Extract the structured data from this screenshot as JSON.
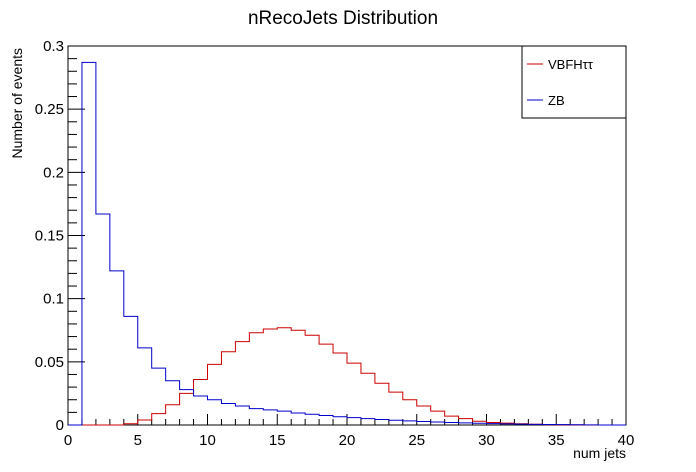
{
  "chart_data": {
    "type": "histogram",
    "title": "nRecoJets Distribution",
    "xlabel": "num jets",
    "ylabel": "Number of events",
    "xlim": [
      0,
      40
    ],
    "ylim": [
      0,
      0.3
    ],
    "x_ticks": [
      "0",
      "5",
      "10",
      "15",
      "20",
      "25",
      "30",
      "35",
      "40"
    ],
    "y_ticks": [
      "0",
      "0.05",
      "0.1",
      "0.15",
      "0.2",
      "0.25",
      "0.3"
    ],
    "bin_edges": [
      0,
      1,
      2,
      3,
      4,
      5,
      6,
      7,
      8,
      9,
      10,
      11,
      12,
      13,
      14,
      15,
      16,
      17,
      18,
      19,
      20,
      21,
      22,
      23,
      24,
      25,
      26,
      27,
      28,
      29,
      30,
      31,
      32,
      33,
      34,
      35,
      36,
      37,
      38,
      39,
      40
    ],
    "legend_position": "top-right",
    "grid": false,
    "series": [
      {
        "name": "VBFHττ",
        "color": "#cc0000",
        "values": [
          0,
          0,
          0,
          0,
          0.001,
          0.004,
          0.009,
          0.016,
          0.025,
          0.036,
          0.048,
          0.058,
          0.066,
          0.073,
          0.076,
          0.077,
          0.075,
          0.071,
          0.064,
          0.057,
          0.049,
          0.041,
          0.033,
          0.026,
          0.02,
          0.015,
          0.011,
          0.007,
          0.005,
          0.003,
          0.002,
          0.0015,
          0.001,
          0.0006,
          0.0003,
          0.0002,
          0.0001,
          0,
          0,
          0
        ]
      },
      {
        "name": "ZB",
        "color": "#0000cc",
        "values": [
          0,
          0.287,
          0.167,
          0.122,
          0.086,
          0.061,
          0.045,
          0.035,
          0.028,
          0.023,
          0.02,
          0.017,
          0.015,
          0.013,
          0.012,
          0.011,
          0.0095,
          0.0085,
          0.0075,
          0.0065,
          0.0058,
          0.005,
          0.0044,
          0.0038,
          0.0033,
          0.0028,
          0.0024,
          0.002,
          0.0017,
          0.0014,
          0.0011,
          0.0009,
          0.0007,
          0.0005,
          0.0004,
          0.0003,
          0.0002,
          0.0001,
          0,
          0
        ]
      }
    ]
  }
}
